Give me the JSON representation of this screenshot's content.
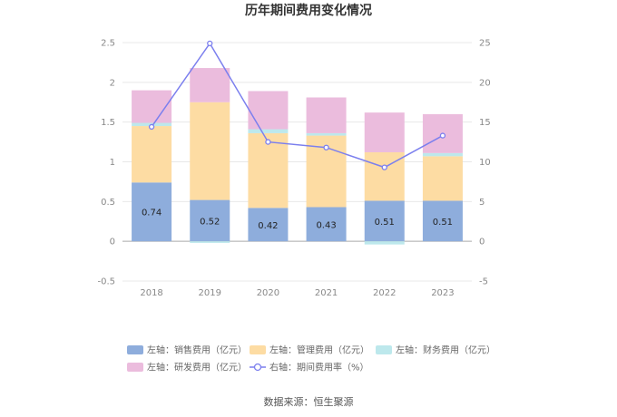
{
  "chart_data": {
    "type": "bar",
    "title": "历年期间费用变化情况",
    "categories": [
      "2018",
      "2019",
      "2020",
      "2021",
      "2022",
      "2023"
    ],
    "stacked": true,
    "series": [
      {
        "name": "左轴：销售费用（亿元）",
        "axis": "left",
        "color": "#8eaddc",
        "values": [
          0.74,
          0.52,
          0.42,
          0.43,
          0.51,
          0.51
        ],
        "labels_shown": true
      },
      {
        "name": "左轴：管理费用（亿元）",
        "axis": "left",
        "color": "#fddca3",
        "values": [
          0.71,
          1.23,
          0.94,
          0.9,
          0.61,
          0.56
        ]
      },
      {
        "name": "左轴：财务费用（亿元）",
        "axis": "left",
        "color": "#bde8ec",
        "values": [
          0.04,
          -0.02,
          0.05,
          0.03,
          -0.04,
          0.04
        ]
      },
      {
        "name": "左轴：研发费用（亿元）",
        "axis": "left",
        "color": "#ebbcdd",
        "values": [
          0.41,
          0.43,
          0.48,
          0.45,
          0.5,
          0.49
        ]
      },
      {
        "name": "右轴：期间费用率（%）",
        "axis": "right",
        "type": "line",
        "color": "#7b7fee",
        "values": [
          14.4,
          24.9,
          12.5,
          11.8,
          9.3,
          13.3
        ]
      }
    ],
    "left_axis": {
      "ylim": [
        -0.5,
        2.5
      ],
      "ticks": [
        "-0.5",
        "0",
        "0.5",
        "1",
        "1.5",
        "2",
        "2.5"
      ]
    },
    "right_axis": {
      "ylim": [
        -5,
        25
      ],
      "ticks": [
        "-5",
        "0",
        "5",
        "10",
        "15",
        "20",
        "25"
      ]
    },
    "grid": true,
    "legend_position": "bottom"
  },
  "source": "数据来源：恒生聚源"
}
